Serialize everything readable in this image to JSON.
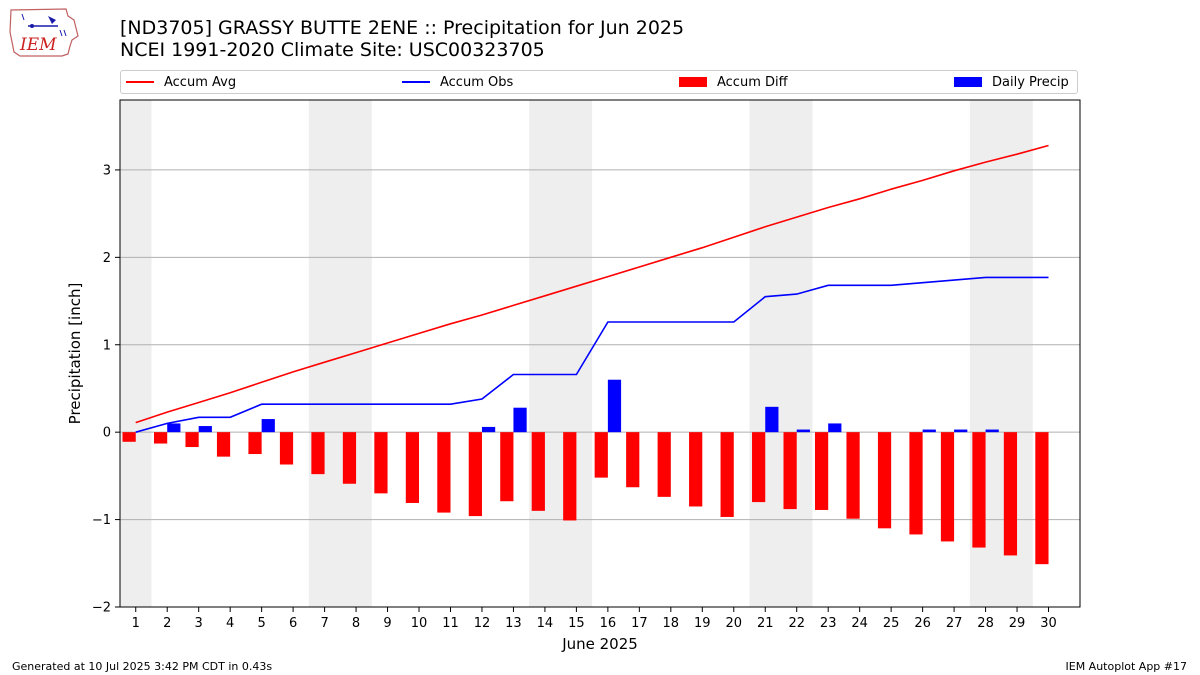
{
  "header": {
    "title_line1": "[ND3705] GRASSY BUTTE 2ENE :: Precipitation for Jun 2025",
    "title_line2": "NCEI 1991-2020 Climate Site: USC00323705",
    "logo_text": "IEM"
  },
  "legend": [
    {
      "label": "Accum Avg",
      "kind": "line",
      "color": "#ff0000"
    },
    {
      "label": "Accum Obs",
      "kind": "line",
      "color": "#0000ff"
    },
    {
      "label": "Accum Diff",
      "kind": "bar",
      "color": "#ff0000"
    },
    {
      "label": "Daily Precip",
      "kind": "bar",
      "color": "#0000ff"
    }
  ],
  "footer": {
    "left": "Generated at 10 Jul 2025 3:42 PM CDT in 0.43s",
    "right": "IEM Autoplot App #17"
  },
  "chart_data": {
    "type": "bar",
    "xlabel": "June 2025",
    "ylabel": "Precipitation [inch]",
    "xlim": [
      0.5,
      31
    ],
    "ylim": [
      -2,
      3.8
    ],
    "yticks": [
      -2,
      -1,
      0,
      1,
      2,
      3
    ],
    "ytick_labels": [
      "−2",
      "−1",
      "0",
      "1",
      "2",
      "3"
    ],
    "categories": [
      1,
      2,
      3,
      4,
      5,
      6,
      7,
      8,
      9,
      10,
      11,
      12,
      13,
      14,
      15,
      16,
      17,
      18,
      19,
      20,
      21,
      22,
      23,
      24,
      25,
      26,
      27,
      28,
      29,
      30
    ],
    "weekend_bands": [
      [
        0.5,
        1.5
      ],
      [
        6.5,
        8.5
      ],
      [
        13.5,
        15.5
      ],
      [
        20.5,
        22.5
      ],
      [
        27.5,
        29.5
      ]
    ],
    "grid": "horizontal",
    "colors": {
      "avg": "#ff0000",
      "obs": "#0000ff",
      "band": "#eeeeee",
      "grid": "#b0b0b0"
    },
    "series": [
      {
        "name": "Accum Avg",
        "kind": "line",
        "values": [
          0.11,
          0.23,
          0.34,
          0.45,
          0.57,
          0.69,
          0.8,
          0.91,
          1.02,
          1.13,
          1.24,
          1.34,
          1.45,
          1.56,
          1.67,
          1.78,
          1.89,
          2.0,
          2.11,
          2.23,
          2.35,
          2.46,
          2.57,
          2.67,
          2.78,
          2.88,
          2.99,
          3.09,
          3.18,
          3.28
        ]
      },
      {
        "name": "Accum Obs",
        "kind": "line",
        "values": [
          0.0,
          0.1,
          0.17,
          0.17,
          0.32,
          0.32,
          0.32,
          0.32,
          0.32,
          0.32,
          0.32,
          0.38,
          0.66,
          0.66,
          0.66,
          1.26,
          1.26,
          1.26,
          1.26,
          1.26,
          1.55,
          1.58,
          1.68,
          1.68,
          1.68,
          1.71,
          1.74,
          1.77,
          1.77,
          1.77
        ]
      },
      {
        "name": "Accum Diff",
        "kind": "bar",
        "values": [
          -0.11,
          -0.13,
          -0.17,
          -0.28,
          -0.25,
          -0.37,
          -0.48,
          -0.59,
          -0.7,
          -0.81,
          -0.92,
          -0.96,
          -0.79,
          -0.9,
          -1.01,
          -0.52,
          -0.63,
          -0.74,
          -0.85,
          -0.97,
          -0.8,
          -0.88,
          -0.89,
          -0.99,
          -1.1,
          -1.17,
          -1.25,
          -1.32,
          -1.41,
          -1.51
        ]
      },
      {
        "name": "Daily Precip",
        "kind": "bar",
        "values": [
          0.0,
          0.1,
          0.07,
          0.0,
          0.15,
          0.0,
          0.0,
          0.0,
          0.0,
          0.0,
          0.0,
          0.06,
          0.28,
          0.0,
          0.0,
          0.6,
          0.0,
          0.0,
          0.0,
          0.0,
          0.29,
          0.03,
          0.1,
          0.0,
          0.0,
          0.03,
          0.03,
          0.03,
          0.0,
          0.0
        ]
      }
    ]
  }
}
